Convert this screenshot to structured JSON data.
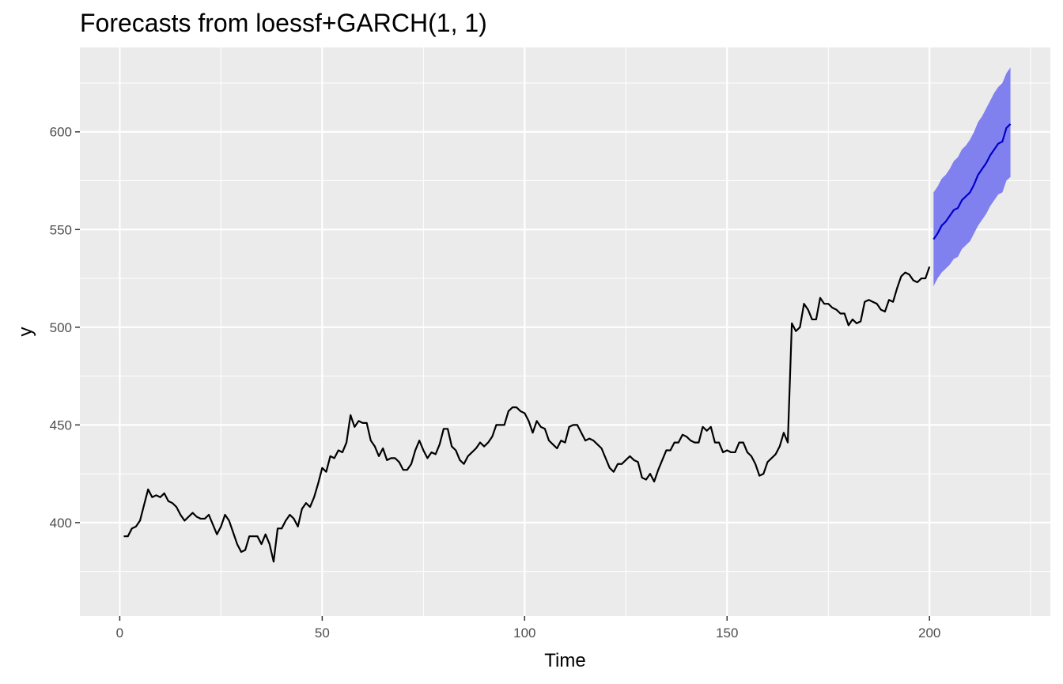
{
  "chart_data": {
    "type": "line",
    "title": "Forecasts from loessf+GARCH(1, 1)",
    "xlabel": "Time",
    "ylabel": "y",
    "xlim": [
      -9.85,
      229.85
    ],
    "ylim": [
      352.2,
      643.2
    ],
    "x_ticks": [
      0,
      50,
      100,
      150,
      200
    ],
    "y_ticks": [
      400,
      450,
      500,
      550,
      600
    ],
    "grid": true,
    "colors": {
      "panel": "#ebebeb",
      "grid_major": "#ffffff",
      "history_line": "#000000",
      "forecast_line": "#0000cc",
      "interval_fill": "#8080ee"
    },
    "series": [
      {
        "x_start": 1,
        "x_step": 1,
        "values": [
          393,
          393,
          397,
          398,
          401,
          409,
          417,
          413,
          414,
          413,
          415,
          411,
          410,
          408,
          404,
          401,
          403,
          405,
          403,
          402,
          402,
          404,
          399,
          394,
          398,
          404,
          401,
          395,
          389,
          385,
          386,
          393,
          393,
          393,
          389,
          394,
          389,
          380,
          397,
          397,
          401,
          404,
          402,
          398,
          407,
          410,
          408,
          413,
          420,
          428,
          426,
          434,
          433,
          437,
          436,
          441,
          455,
          449,
          452,
          451,
          451,
          442,
          439,
          434,
          438,
          432,
          433,
          433,
          431,
          427,
          427,
          430,
          437,
          442,
          437,
          433,
          436,
          435,
          440,
          448,
          448,
          439,
          437,
          432,
          430,
          434,
          436,
          438,
          441,
          439,
          441,
          444,
          450,
          450,
          450,
          457,
          459,
          459,
          457,
          456,
          452,
          446,
          452,
          449,
          448,
          442,
          440,
          438,
          442,
          441,
          449,
          450,
          450,
          446,
          442,
          443,
          442,
          440,
          438,
          433,
          428,
          426,
          430,
          430,
          432,
          434,
          432,
          431,
          423,
          422,
          425,
          421,
          427,
          432,
          437,
          437,
          441,
          441,
          445,
          444,
          442,
          441,
          441,
          449,
          447,
          449,
          441,
          441,
          436,
          437,
          436,
          436,
          441,
          441,
          436,
          434,
          430,
          424,
          425,
          431,
          433,
          435,
          439,
          446,
          441,
          502,
          498,
          500,
          512,
          509,
          504,
          504,
          515,
          512,
          512,
          510,
          509,
          507,
          507,
          501,
          504,
          502,
          503,
          513,
          514,
          513,
          512,
          509,
          508,
          514,
          513,
          520,
          526,
          528,
          527,
          524,
          523,
          525,
          525,
          531
        ]
      }
    ],
    "forecast": {
      "x_start": 201,
      "x_step": 1,
      "mean": [
        545,
        548,
        552,
        554,
        557,
        560,
        561,
        565,
        567,
        569,
        573,
        578,
        581,
        584,
        588,
        591,
        594,
        595,
        602,
        604
      ],
      "lower": [
        521,
        525,
        528,
        530,
        532,
        535,
        536,
        540,
        542,
        544,
        548,
        552,
        555,
        558,
        562,
        565,
        568,
        569,
        575,
        577
      ],
      "upper": [
        569,
        572,
        576,
        578,
        581,
        585,
        587,
        591,
        593,
        596,
        600,
        605,
        608,
        612,
        616,
        620,
        623,
        625,
        630,
        633
      ]
    }
  }
}
